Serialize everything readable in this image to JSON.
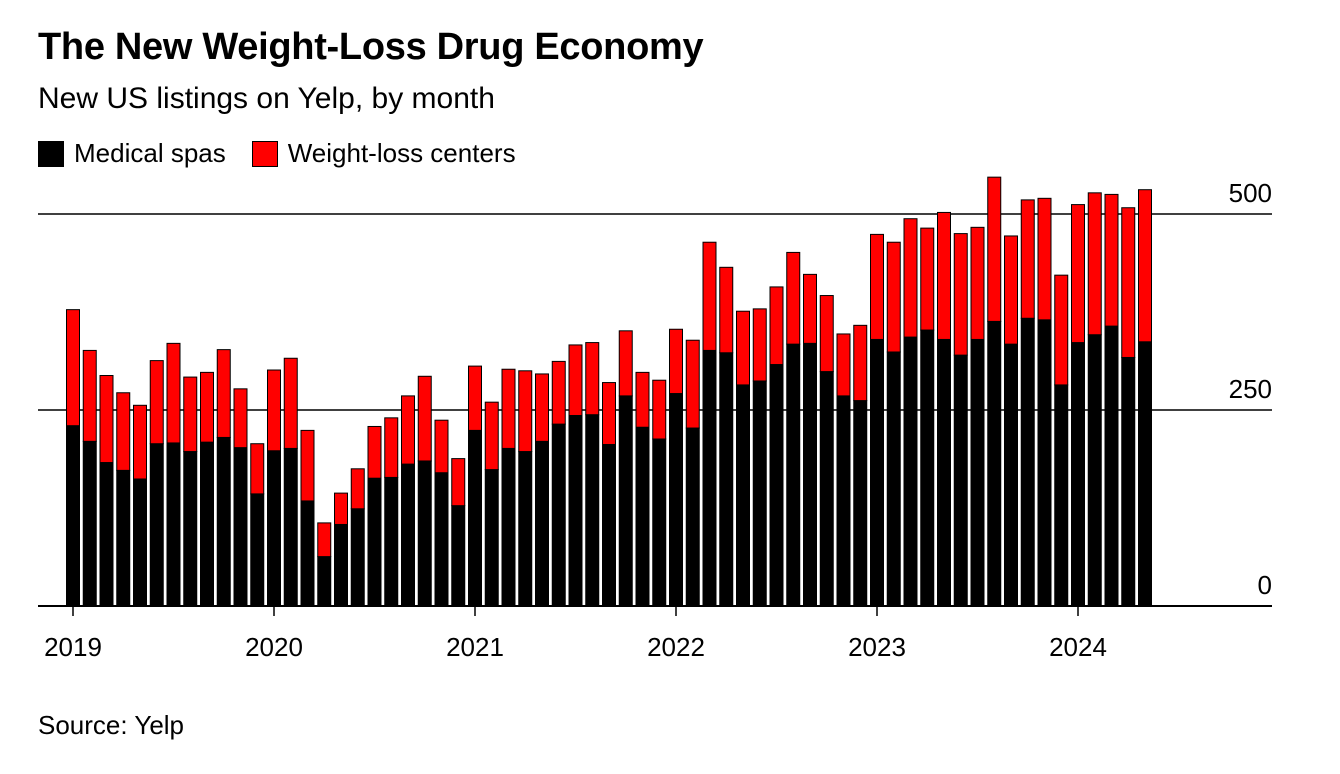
{
  "header": {
    "title": "The New Weight-Loss Drug Economy",
    "subtitle": "New US listings on Yelp, by month"
  },
  "footer": {
    "source": "Source: Yelp"
  },
  "colors": {
    "medical_spas": "#000000",
    "weight_loss_centers": "#ff0000",
    "axis": "#000000"
  },
  "chart_data": {
    "type": "bar",
    "stacked": true,
    "x_start": "2019-01",
    "x_end": "2024-05",
    "categories": [
      "2019-01",
      "2019-02",
      "2019-03",
      "2019-04",
      "2019-05",
      "2019-06",
      "2019-07",
      "2019-08",
      "2019-09",
      "2019-10",
      "2019-11",
      "2019-12",
      "2020-01",
      "2020-02",
      "2020-03",
      "2020-04",
      "2020-05",
      "2020-06",
      "2020-07",
      "2020-08",
      "2020-09",
      "2020-10",
      "2020-11",
      "2020-12",
      "2021-01",
      "2021-02",
      "2021-03",
      "2021-04",
      "2021-05",
      "2021-06",
      "2021-07",
      "2021-08",
      "2021-09",
      "2021-10",
      "2021-11",
      "2021-12",
      "2022-01",
      "2022-02",
      "2022-03",
      "2022-04",
      "2022-05",
      "2022-06",
      "2022-07",
      "2022-08",
      "2022-09",
      "2022-10",
      "2022-11",
      "2022-12",
      "2023-01",
      "2023-02",
      "2023-03",
      "2023-04",
      "2023-05",
      "2023-06",
      "2023-07",
      "2023-08",
      "2023-09",
      "2023-10",
      "2023-11",
      "2023-12",
      "2024-01",
      "2024-02",
      "2024-03",
      "2024-04",
      "2024-05"
    ],
    "series": [
      {
        "name": "Medical spas",
        "color": "#000000",
        "values": [
          230,
          210,
          183,
          173,
          162,
          207,
          208,
          197,
          209,
          215,
          202,
          143,
          198,
          201,
          134,
          63,
          104,
          124,
          163,
          164,
          181,
          185,
          170,
          128,
          224,
          174,
          201,
          197,
          210,
          232,
          243,
          244,
          206,
          268,
          228,
          213,
          271,
          227,
          326,
          323,
          282,
          287,
          308,
          334,
          335,
          299,
          268,
          262,
          340,
          324,
          343,
          352,
          340,
          320,
          340,
          363,
          334,
          367,
          365,
          282,
          336,
          346,
          357,
          317,
          337
        ]
      },
      {
        "name": "Weight-loss centers",
        "color": "#ff0000",
        "values": [
          148,
          116,
          111,
          99,
          94,
          106,
          127,
          95,
          89,
          112,
          75,
          64,
          103,
          115,
          90,
          43,
          40,
          51,
          66,
          76,
          87,
          108,
          67,
          60,
          82,
          86,
          101,
          103,
          86,
          80,
          90,
          92,
          79,
          83,
          70,
          75,
          82,
          112,
          138,
          109,
          94,
          92,
          99,
          117,
          88,
          97,
          79,
          96,
          134,
          140,
          151,
          130,
          162,
          155,
          143,
          184,
          138,
          151,
          155,
          140,
          176,
          181,
          168,
          191,
          194
        ]
      }
    ],
    "y_range": [
      0,
      500
    ],
    "y_ticks": [
      0,
      250,
      500
    ],
    "y_tick_labels": [
      "0",
      "250",
      "500"
    ],
    "x_tick_labels": [
      "2019",
      "2020",
      "2021",
      "2022",
      "2023",
      "2024"
    ],
    "legend_position": "top-left",
    "grid": "horizontal"
  }
}
